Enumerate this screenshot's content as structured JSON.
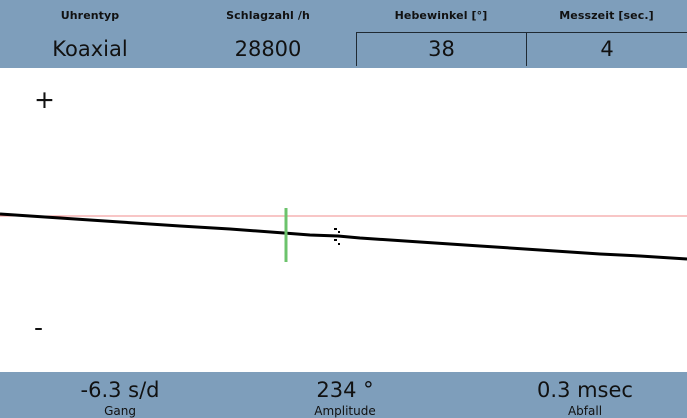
{
  "header": {
    "params": [
      {
        "label": "Uhrentyp",
        "value": "Koaxial"
      },
      {
        "label": "Schlagzahl /h",
        "value": "28800"
      },
      {
        "label": "Hebewinkel [°]",
        "value": "38"
      },
      {
        "label": "Messzeit [sec.]",
        "value": "4"
      }
    ]
  },
  "plot": {
    "plus_label": "+",
    "minus_label": "-",
    "colors": {
      "trace": "#000000",
      "reference_line": "#f08c8c",
      "marker": "#6cc36c"
    }
  },
  "results": [
    {
      "value": "-6.3 s/d",
      "label": "Gang"
    },
    {
      "value": "234 °",
      "label": "Amplitude"
    },
    {
      "value": "0.3 msec",
      "label": "Abfall"
    }
  ],
  "colors": {
    "bar_background": "#7e9ebb",
    "text": "#111111"
  }
}
